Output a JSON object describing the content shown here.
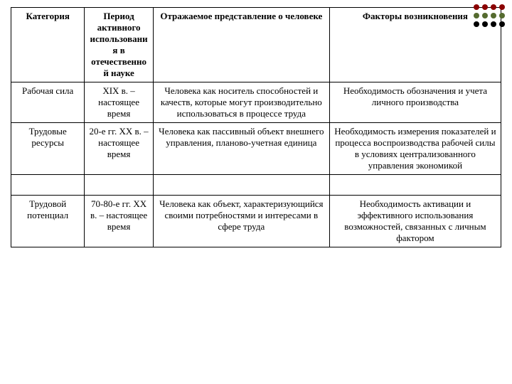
{
  "table": {
    "columns": [
      "Категория",
      "Период активного использования в отечественной науке",
      "Отражаемое представление о человеке",
      "Факторы возникновения"
    ],
    "rows": [
      {
        "category": "Рабочая сила",
        "period": "XIX в. – настоящее время",
        "concept": "Человека как носитель способностей и качеств, которые могут производительно использоваться в процессе труда",
        "factors": "Необходимость обозначения и учета личного производства"
      },
      {
        "category": "Трудовые ресурсы",
        "period": "20-е гг. XX в. – настоящее время",
        "concept": "Человека как пассивный объект внешнего управления, планово-учетная единица",
        "factors": "Необходимость измерения показателей и процесса воспроизводства рабочей силы в условиях централизованного управления экономикой"
      },
      {
        "category": "Трудовой потенциал",
        "period": "70-80-е гг. XX в. – настоящее время",
        "concept": "Человека как объект, характеризующийся своими потребностями и интересами в сфере труда",
        "factors": "Необходимость активации и эффективного использования возможностей, связанных с личным фактором"
      }
    ]
  },
  "decor": {
    "colors": [
      "#8b0000",
      "#556b2f",
      "#000000"
    ]
  }
}
